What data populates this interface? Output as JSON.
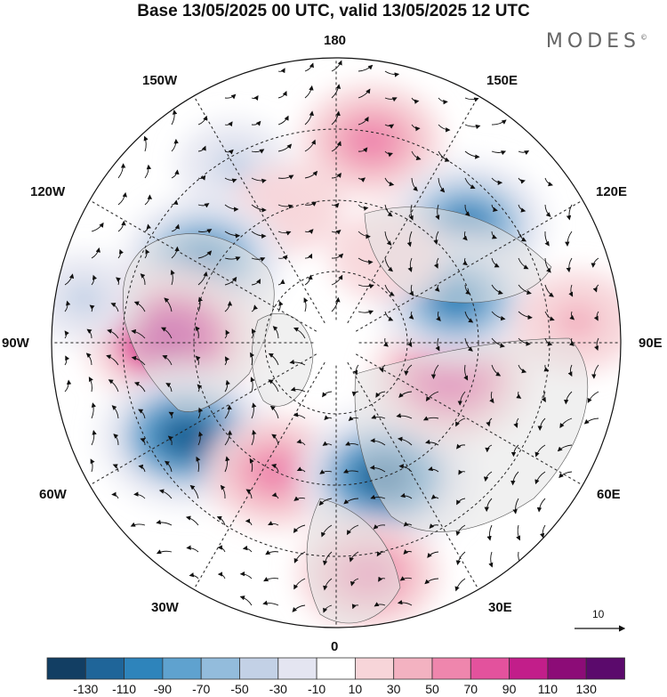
{
  "title": "Base 13/05/2025 00 UTC, valid 13/05/2025 12 UTC",
  "brand": "MODES",
  "brand_mark": "©",
  "longitude_labels": {
    "north": "180",
    "south": "0",
    "east": "90E",
    "west": "90W",
    "ne": "150E",
    "nw": "150W",
    "ene": "120E",
    "wnw": "120W",
    "ese": "60E",
    "wsw": "60W",
    "se": "30E",
    "sw": "30W"
  },
  "vector_scale_label": "10",
  "colorbar": {
    "labels": [
      "-130",
      "-110",
      "-90",
      "-70",
      "-50",
      "-30",
      "-10",
      "10",
      "30",
      "50",
      "70",
      "90",
      "110",
      "130"
    ],
    "colors": [
      "#123e63",
      "#1f6599",
      "#2e84bb",
      "#5fa2cf",
      "#93bcdc",
      "#c3d1e6",
      "#e4e5f1",
      "#ffffff",
      "#f7d5d9",
      "#f3b2c1",
      "#ef86ad",
      "#e3529d",
      "#c21e8a",
      "#8c0c77",
      "#5b0a6c"
    ]
  },
  "anomaly_centers": [
    {
      "lon": 170,
      "lat_r": 0.72,
      "value": 70
    },
    {
      "lon": 132,
      "lat_r": 0.62,
      "value": -90
    },
    {
      "lon": -150,
      "lat_r": 0.72,
      "value": -30
    },
    {
      "lon": -160,
      "lat_r": 0.5,
      "value": 30
    },
    {
      "lon": -122,
      "lat_r": 0.55,
      "value": -90
    },
    {
      "lon": -92,
      "lat_r": 0.58,
      "value": 110
    },
    {
      "lon": -58,
      "lat_r": 0.62,
      "value": -110
    },
    {
      "lon": -25,
      "lat_r": 0.5,
      "value": 70
    },
    {
      "lon": 20,
      "lat_r": 0.5,
      "value": -110
    },
    {
      "lon": 8,
      "lat_r": 0.82,
      "value": 70
    },
    {
      "lon": 72,
      "lat_r": 0.42,
      "value": 90
    },
    {
      "lon": 110,
      "lat_r": 0.45,
      "value": -90
    },
    {
      "lon": 150,
      "lat_r": 0.35,
      "value": 30
    },
    {
      "lon": -100,
      "lat_r": 0.9,
      "value": -30
    },
    {
      "lon": 95,
      "lat_r": 0.85,
      "value": 50
    }
  ]
}
